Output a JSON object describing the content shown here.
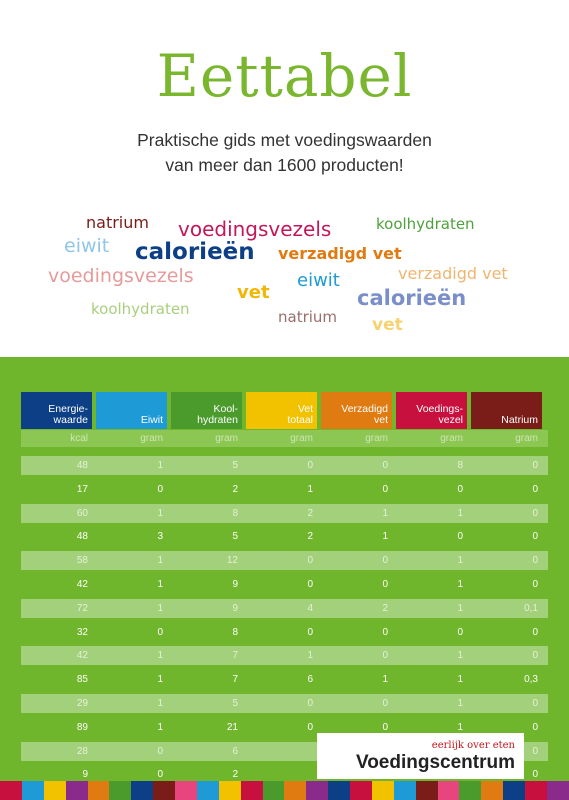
{
  "title": "Eettabel",
  "subtitle_line1": "Praktische gids met voedingswaarden",
  "subtitle_line2": "van meer dan 1600 producten!",
  "word_cloud": [
    {
      "text": "natrium",
      "color": "#7a1c17"
    },
    {
      "text": "voedingsvezels",
      "color": "#c2185b"
    },
    {
      "text": "koolhydraten",
      "color": "#4fa23a"
    },
    {
      "text": "eiwit",
      "color": "#8fc6e8"
    },
    {
      "text": "calorieën",
      "color": "#0d3f86"
    },
    {
      "text": "verzadigd vet",
      "color": "#e07b12"
    },
    {
      "text": "voedingsvezels",
      "color": "#e79a9a"
    },
    {
      "text": "eiwit",
      "color": "#1e9ad6"
    },
    {
      "text": "verzadigd vet",
      "color": "#f0b56e"
    },
    {
      "text": "vet",
      "color": "#f2b705"
    },
    {
      "text": "calorieën",
      "color": "#7a8fc8"
    },
    {
      "text": "koolhydraten",
      "color": "#a9cf7e"
    },
    {
      "text": "natrium",
      "color": "#9a6e6a"
    },
    {
      "text": "vet",
      "color": "#f6d370"
    }
  ],
  "table": {
    "columns": [
      {
        "label": "Energie-\nwaarde",
        "unit": "kcal",
        "color": "#0d3f86"
      },
      {
        "label": "Eiwit",
        "unit": "gram",
        "color": "#1e9ad6"
      },
      {
        "label": "Kool-\nhydraten",
        "unit": "gram",
        "color": "#4a9a2c"
      },
      {
        "label": "Vet\ntotaal",
        "unit": "gram",
        "color": "#f2c200"
      },
      {
        "label": "Verzadigd\nvet",
        "unit": "gram",
        "color": "#e07b12"
      },
      {
        "label": "Voedings-\nvezel",
        "unit": "gram",
        "color": "#c8103e"
      },
      {
        "label": "Natrium",
        "unit": "gram",
        "color": "#7a1c17"
      }
    ],
    "rows": [
      [
        "48",
        "1",
        "5",
        "0",
        "0",
        "8",
        "0"
      ],
      [
        "17",
        "0",
        "2",
        "1",
        "0",
        "0",
        "0"
      ],
      [
        "60",
        "1",
        "8",
        "2",
        "1",
        "1",
        "0"
      ],
      [
        "48",
        "3",
        "5",
        "2",
        "1",
        "0",
        "0"
      ],
      [
        "58",
        "1",
        "12",
        "0",
        "0",
        "1",
        "0"
      ],
      [
        "42",
        "1",
        "9",
        "0",
        "0",
        "1",
        "0"
      ],
      [
        "72",
        "1",
        "9",
        "4",
        "2",
        "1",
        "0,1"
      ],
      [
        "32",
        "0",
        "8",
        "0",
        "0",
        "0",
        "0"
      ],
      [
        "42",
        "1",
        "7",
        "1",
        "0",
        "1",
        "0"
      ],
      [
        "85",
        "1",
        "7",
        "6",
        "1",
        "1",
        "0,3"
      ],
      [
        "29",
        "1",
        "5",
        "0",
        "0",
        "1",
        "0"
      ],
      [
        "89",
        "1",
        "21",
        "0",
        "0",
        "1",
        "0"
      ],
      [
        "28",
        "0",
        "6",
        "",
        "",
        "",
        "0"
      ],
      [
        "9",
        "0",
        "2",
        "",
        "",
        "",
        "0"
      ]
    ]
  },
  "logo": {
    "tagline": "eerlijk over eten",
    "name": "Voedingscentrum"
  },
  "stripe_colors": [
    "#c8103e",
    "#1e9ad6",
    "#f2c200",
    "#8a2b8c",
    "#e07b12",
    "#4a9a2c",
    "#0d3f86",
    "#7a1c17",
    "#e8457e",
    "#1e9ad6",
    "#f2c200",
    "#c8103e",
    "#4a9a2c",
    "#e07b12",
    "#8a2b8c",
    "#0d3f86",
    "#c8103e",
    "#f2c200",
    "#1e9ad6",
    "#7a1c17",
    "#e8457e",
    "#4a9a2c",
    "#e07b12",
    "#0d3f86",
    "#c8103e",
    "#8a2b8c"
  ]
}
